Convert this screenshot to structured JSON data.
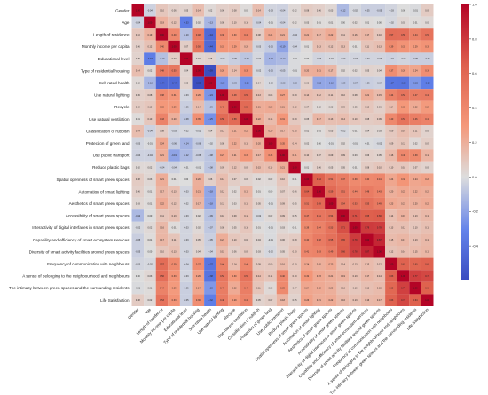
{
  "chart_data": {
    "type": "heatmap",
    "title": "",
    "xlabel": "",
    "ylabel": "",
    "labels": [
      "Gender",
      "Age",
      "Length of residence",
      "Monthly income per capita",
      "Educational level",
      "Type of residential housing",
      "Self-rated health",
      "Use natural lighting",
      "Recycle",
      "Use natural ventilation",
      "Classification of rubbish",
      "Protection of green land",
      "Use public transport",
      "Reduce plastic bags",
      "Spatial openness of smart green spaces",
      "Automation of smart lighting",
      "Aesthetics of smart green spaces",
      "Accessibility of smart green spaces",
      "Interactivity of digital interfaces in smart green spaces",
      "Capability and efficiency of smart ecosystem services",
      "Diversity of smart activity facilities around green spaces",
      "Frequency of communication with neighbours",
      "A sense of belonging to the neighbourhood and neighbours",
      "The intimacy between green spaces and the surrounding residents",
      "Life Satisfaction"
    ],
    "matrix": [
      [
        1.0,
        -0.04,
        0.1,
        0.06,
        0.05,
        0.14,
        0.02,
        0.06,
        0.08,
        0.01,
        0.14,
        -0.03,
        -0.04,
        0.02,
        0.08,
        0.06,
        0.03,
        -0.12,
        -0.02,
        -0.05,
        -0.05,
        -0.03,
        0.0,
        -0.01,
        0.08
      ],
      [
        -0.04,
        1.0,
        0.19,
        0.12,
        -0.33,
        0.02,
        -0.13,
        0.08,
        0.1,
        0.1,
        -0.04,
        -0.01,
        -0.04,
        0.02,
        0.03,
        0.01,
        0.01,
        0.0,
        0.02,
        0.01,
        0.0,
        -0.02,
        0.03,
        0.01,
        0.02
      ],
      [
        0.1,
        0.19,
        1.0,
        0.4,
        -0.1,
        0.48,
        -0.44,
        0.38,
        0.3,
        0.43,
        0.08,
        0.24,
        0.21,
        -0.04,
        0.21,
        0.17,
        0.22,
        0.11,
        0.16,
        0.17,
        0.1,
        0.57,
        0.56,
        0.44,
        0.53
      ],
      [
        0.06,
        0.12,
        0.4,
        1.0,
        0.07,
        0.5,
        -0.44,
        0.31,
        0.29,
        0.2,
        -0.03,
        -0.06,
        -0.19,
        -0.04,
        0.01,
        0.13,
        0.12,
        0.13,
        0.01,
        0.11,
        0.13,
        0.39,
        0.33,
        0.29,
        0.33
      ],
      [
        0.05,
        -0.33,
        -0.1,
        0.07,
        1.0,
        0.04,
        0.05,
        -0.03,
        -0.05,
        -0.08,
        -0.02,
        -0.14,
        -0.12,
        -0.01,
        0.0,
        -0.03,
        -0.02,
        -0.03,
        -0.03,
        -0.03,
        -0.03,
        -0.04,
        -0.03,
        -0.05,
        -0.05
      ],
      [
        0.14,
        0.02,
        0.48,
        0.5,
        0.04,
        1.0,
        -0.59,
        0.26,
        0.14,
        0.35,
        -0.02,
        -0.06,
        -0.05,
        -0.01,
        0.2,
        0.21,
        0.17,
        0.02,
        0.02,
        0.05,
        0.04,
        0.37,
        0.26,
        0.24,
        0.36
      ],
      [
        0.02,
        -0.13,
        -0.44,
        -0.44,
        0.05,
        -0.59,
        1.0,
        -0.24,
        -0.09,
        -0.25,
        0.04,
        -0.02,
        -0.08,
        -0.08,
        0.06,
        -0.18,
        -0.18,
        -0.09,
        -0.07,
        -0.05,
        -0.04,
        -0.37,
        -0.38,
        -0.23,
        -0.32
      ],
      [
        0.06,
        0.08,
        0.38,
        0.31,
        -0.03,
        0.26,
        -0.24,
        1.0,
        0.48,
        0.58,
        0.13,
        0.08,
        0.27,
        0.09,
        0.14,
        0.12,
        0.11,
        0.1,
        0.08,
        0.21,
        0.15,
        0.44,
        0.52,
        0.47,
        0.48
      ],
      [
        0.08,
        0.1,
        0.3,
        0.29,
        -0.05,
        0.14,
        -0.09,
        0.48,
        1.0,
        0.58,
        0.21,
        0.22,
        0.21,
        0.12,
        0.07,
        0.02,
        0.03,
        0.09,
        0.05,
        0.1,
        0.06,
        0.14,
        0.3,
        0.22,
        0.29
      ],
      [
        0.01,
        0.1,
        0.43,
        0.2,
        -0.08,
        0.35,
        -0.25,
        0.58,
        0.58,
        1.0,
        0.22,
        0.15,
        0.31,
        0.09,
        0.05,
        0.17,
        0.13,
        0.14,
        0.1,
        0.08,
        0.09,
        0.4,
        0.53,
        0.46,
        0.43
      ],
      [
        0.14,
        -0.04,
        0.08,
        -0.03,
        -0.02,
        -0.02,
        0.04,
        0.13,
        0.21,
        0.22,
        1.0,
        0.2,
        0.17,
        0.15,
        0.02,
        0.01,
        0.05,
        -0.02,
        0.01,
        0.04,
        0.03,
        0.09,
        0.14,
        0.11,
        0.05
      ],
      [
        -0.03,
        -0.01,
        0.24,
        -0.06,
        -0.14,
        -0.06,
        -0.02,
        0.08,
        0.22,
        0.15,
        0.2,
        1.0,
        0.35,
        0.14,
        0.02,
        0.0,
        -0.01,
        0.02,
        -0.01,
        -0.01,
        -0.02,
        0.09,
        0.11,
        0.02,
        0.07
      ],
      [
        -0.04,
        -0.04,
        0.21,
        -0.19,
        -0.12,
        -0.05,
        -0.08,
        0.27,
        0.21,
        0.31,
        0.17,
        0.35,
        1.0,
        0.21,
        0.1,
        0.07,
        0.09,
        0.09,
        0.03,
        0.06,
        0.05,
        0.16,
        0.4,
        0.39,
        0.18
      ],
      [
        0.02,
        0.02,
        -0.04,
        -0.04,
        -0.01,
        -0.01,
        -0.08,
        0.09,
        0.12,
        0.09,
        0.15,
        0.14,
        0.21,
        1.0,
        0.01,
        0.06,
        0.05,
        0.05,
        0.01,
        0.08,
        0.1,
        0.1,
        0.1,
        0.07,
        0.05
      ],
      [
        0.08,
        0.03,
        0.21,
        0.01,
        0.0,
        0.2,
        0.06,
        0.14,
        0.07,
        0.05,
        0.02,
        0.02,
        0.1,
        0.01,
        1.0,
        0.64,
        0.51,
        0.47,
        0.39,
        0.4,
        0.41,
        0.24,
        0.32,
        0.24,
        0.26
      ],
      [
        0.06,
        0.01,
        0.17,
        0.13,
        -0.03,
        0.21,
        -0.18,
        0.12,
        0.02,
        0.17,
        0.01,
        0.0,
        0.07,
        0.06,
        0.64,
        1.0,
        0.59,
        0.51,
        0.44,
        0.48,
        0.43,
        0.2,
        0.23,
        0.22,
        0.21
      ],
      [
        0.03,
        0.01,
        0.22,
        0.12,
        -0.02,
        0.17,
        -0.18,
        0.11,
        0.03,
        0.13,
        0.05,
        -0.01,
        0.09,
        0.05,
        0.51,
        0.59,
        1.0,
        0.54,
        0.53,
        0.55,
        0.49,
        0.23,
        0.21,
        0.2,
        0.22
      ],
      [
        -0.12,
        0.0,
        0.11,
        0.13,
        -0.03,
        0.02,
        -0.09,
        0.1,
        0.09,
        0.14,
        -0.02,
        0.02,
        0.09,
        0.05,
        0.47,
        0.51,
        0.54,
        1.0,
        0.71,
        0.65,
        0.66,
        0.14,
        0.19,
        0.13,
        0.16
      ],
      [
        -0.02,
        0.02,
        0.16,
        0.01,
        -0.03,
        0.02,
        -0.07,
        0.08,
        0.05,
        0.1,
        0.01,
        -0.01,
        0.03,
        0.01,
        0.39,
        0.44,
        0.53,
        0.71,
        1.0,
        0.79,
        0.78,
        0.13,
        0.13,
        0.1,
        0.13
      ],
      [
        -0.05,
        0.01,
        0.17,
        0.11,
        -0.03,
        0.05,
        -0.05,
        0.21,
        0.1,
        0.08,
        0.04,
        -0.01,
        0.06,
        0.08,
        0.4,
        0.48,
        0.55,
        0.65,
        0.79,
        1.0,
        0.87,
        0.15,
        0.17,
        0.13,
        0.16
      ],
      [
        -0.05,
        0.0,
        0.1,
        0.13,
        -0.03,
        0.04,
        -0.04,
        0.15,
        0.06,
        0.09,
        0.03,
        -0.02,
        0.05,
        0.1,
        0.41,
        0.43,
        0.49,
        0.66,
        0.78,
        0.87,
        1.0,
        0.12,
        0.14,
        0.15,
        0.17
      ],
      [
        -0.03,
        -0.02,
        0.57,
        0.39,
        -0.04,
        0.37,
        -0.37,
        0.44,
        0.14,
        0.4,
        0.09,
        0.09,
        0.16,
        0.1,
        0.24,
        0.2,
        0.23,
        0.14,
        0.13,
        0.15,
        0.12,
        1.0,
        0.63,
        0.6,
        0.63
      ],
      [
        0.0,
        0.03,
        0.56,
        0.33,
        -0.03,
        0.26,
        -0.38,
        0.52,
        0.3,
        0.53,
        0.14,
        0.11,
        0.4,
        0.1,
        0.32,
        0.23,
        0.21,
        0.19,
        0.13,
        0.17,
        0.14,
        0.63,
        1.0,
        0.77,
        0.74
      ],
      [
        -0.01,
        0.01,
        0.44,
        0.29,
        -0.05,
        0.24,
        -0.23,
        0.47,
        0.22,
        0.46,
        0.11,
        0.02,
        0.39,
        0.07,
        0.24,
        0.22,
        0.2,
        0.13,
        0.1,
        0.13,
        0.15,
        0.6,
        0.77,
        1.0,
        0.64
      ],
      [
        0.08,
        0.02,
        0.53,
        0.33,
        -0.05,
        0.36,
        -0.32,
        0.48,
        0.29,
        0.43,
        0.05,
        0.07,
        0.18,
        0.05,
        0.26,
        0.21,
        0.22,
        0.16,
        0.13,
        0.16,
        0.17,
        0.63,
        0.74,
        0.64,
        1.0
      ]
    ],
    "colorbar": {
      "min": -0.6,
      "max": 1.0,
      "ticks": [
        "1.0",
        "0.8",
        "0.6",
        "0.4",
        "0.2",
        "0.0",
        "-0.2",
        "-0.4"
      ],
      "colormap": "coolwarm",
      "low_color": "#3b4cc0",
      "mid_color": "#dddddd",
      "high_color": "#b40426"
    }
  }
}
